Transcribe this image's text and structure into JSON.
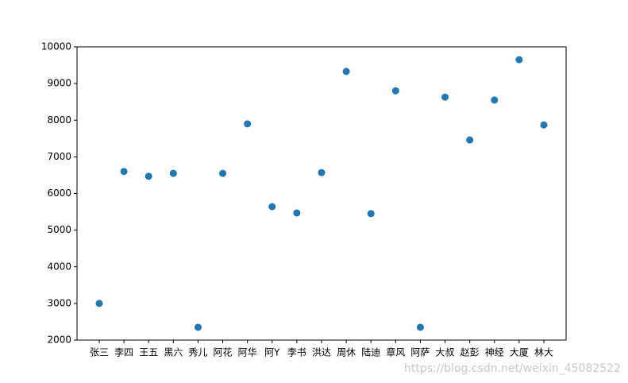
{
  "chart_data": {
    "type": "scatter",
    "categories": [
      "张三",
      "李四",
      "王五",
      "黑六",
      "秀儿",
      "阿花",
      "阿华",
      "阿Y",
      "李书",
      "洪达",
      "周休",
      "陆迪",
      "章风",
      "阿萨",
      "大叔",
      "赵彭",
      "神经",
      "大厦",
      "林大"
    ],
    "values": [
      3000,
      6600,
      6470,
      6550,
      2350,
      6550,
      7900,
      5640,
      5470,
      6570,
      9330,
      5450,
      8800,
      2350,
      8630,
      7460,
      8550,
      9650,
      7870
    ],
    "color": "#1f77b4",
    "ylim": [
      2000,
      10000
    ],
    "yticks": [
      2000,
      3000,
      4000,
      5000,
      6000,
      7000,
      8000,
      9000,
      10000
    ],
    "grid": false
  },
  "watermark": "https://blog.csdn.net/weixin_45082522"
}
